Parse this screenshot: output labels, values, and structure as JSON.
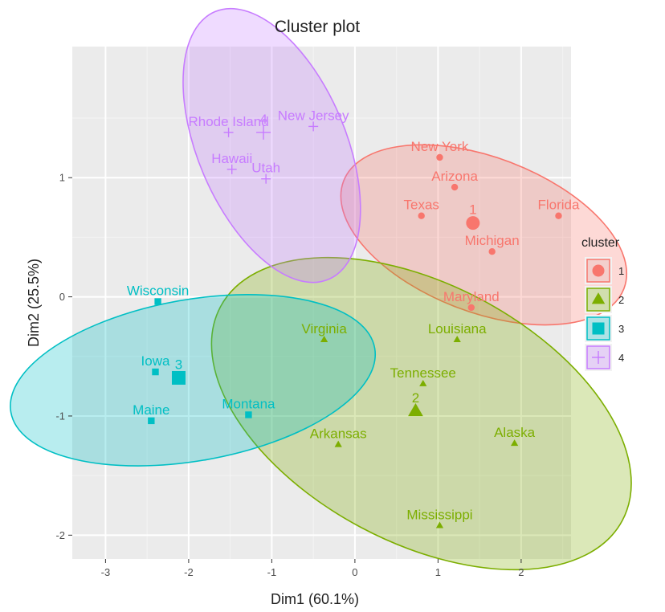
{
  "chart_data": {
    "type": "scatter",
    "title": "Cluster plot",
    "xlabel": "Dim1 (60.1%)",
    "ylabel": "Dim2 (25.5%)",
    "xlim": [
      -3.4,
      2.6
    ],
    "ylim": [
      -2.2,
      2.1
    ],
    "x_ticks": [
      -3,
      -2,
      -1,
      0,
      1,
      2
    ],
    "y_ticks": [
      -2,
      -1,
      0,
      1
    ],
    "grid": true,
    "legend": {
      "title": "cluster",
      "position": "right"
    },
    "clusters": [
      {
        "name": "1",
        "color": "#F8766D",
        "shape": "circle",
        "center": {
          "label": "1",
          "x": 1.42,
          "y": 0.62
        },
        "ellipse": {
          "cx": 1.55,
          "cy": 0.52,
          "rx": 0.93,
          "ry": 1.26,
          "angle": 69
        },
        "points": [
          {
            "label": "New York",
            "x": 1.02,
            "y": 1.17
          },
          {
            "label": "Arizona",
            "x": 1.2,
            "y": 0.92
          },
          {
            "label": "Texas",
            "x": 0.8,
            "y": 0.68
          },
          {
            "label": "Florida",
            "x": 2.45,
            "y": 0.68
          },
          {
            "label": "Michigan",
            "x": 1.65,
            "y": 0.38
          },
          {
            "label": "Maryland",
            "x": 1.4,
            "y": -0.09
          }
        ]
      },
      {
        "name": "2",
        "color": "#7CAE00",
        "shape": "triangle",
        "center": {
          "label": "2",
          "x": 0.73,
          "y": -0.96
        },
        "ellipse": {
          "cx": 0.8,
          "cy": -0.98,
          "rx": 1.55,
          "ry": 1.91,
          "angle": 62
        },
        "points": [
          {
            "label": "Virginia",
            "x": -0.37,
            "y": -0.36
          },
          {
            "label": "Louisiana",
            "x": 1.23,
            "y": -0.36
          },
          {
            "label": "Tennessee",
            "x": 0.82,
            "y": -0.73
          },
          {
            "label": "Arkansas",
            "x": -0.2,
            "y": -1.24
          },
          {
            "label": "Alaska",
            "x": 1.92,
            "y": -1.23
          },
          {
            "label": "Mississippi",
            "x": 1.02,
            "y": -1.92
          }
        ]
      },
      {
        "name": "3",
        "color": "#00BFC4",
        "shape": "square",
        "center": {
          "label": "3",
          "x": -2.12,
          "y": -0.68
        },
        "ellipse": {
          "cx": -1.95,
          "cy": -0.7,
          "rx": 0.97,
          "ry": 1.55,
          "angle": 100
        },
        "points": [
          {
            "label": "Wisconsin",
            "x": -2.37,
            "y": -0.04
          },
          {
            "label": "Iowa",
            "x": -2.4,
            "y": -0.63
          },
          {
            "label": "Maine",
            "x": -2.45,
            "y": -1.04
          },
          {
            "label": "Montana",
            "x": -1.28,
            "y": -0.99
          }
        ]
      },
      {
        "name": "4",
        "color": "#C77CFF",
        "shape": "plus",
        "center": {
          "label": "4",
          "x": -1.1,
          "y": 1.38
        },
        "ellipse": {
          "cx": -1.0,
          "cy": 1.27,
          "rx": 0.89,
          "ry": 1.22,
          "angle": 23
        },
        "points": [
          {
            "label": "Rhode Island",
            "x": -1.52,
            "y": 1.38
          },
          {
            "label": "New Jersey",
            "x": -0.5,
            "y": 1.43
          },
          {
            "label": "Hawaii",
            "x": -1.48,
            "y": 1.07
          },
          {
            "label": "Utah",
            "x": -1.07,
            "y": 0.99
          }
        ]
      }
    ]
  }
}
